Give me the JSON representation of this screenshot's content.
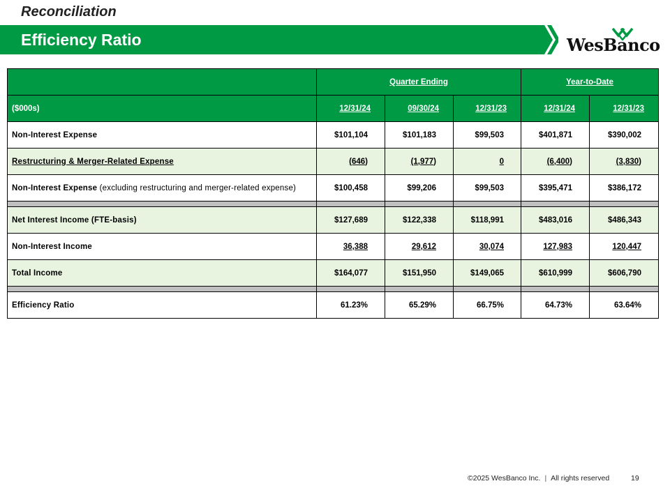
{
  "header": {
    "kicker": "Reconciliation",
    "title": "Efficiency Ratio",
    "logo_text": "WesBanco",
    "accent_color": "#009a44"
  },
  "table": {
    "unit_label": "($000s)",
    "group_quarter": "Quarter Ending",
    "group_ytd": "Year-to-Date",
    "columns": [
      "12/31/24",
      "09/30/24",
      "12/31/23",
      "12/31/24",
      "12/31/23"
    ],
    "rows": {
      "nie": {
        "label": "Non-Interest Expense",
        "values": [
          "$101,104",
          "$101,183",
          "$99,503",
          "$401,871",
          "$390,002"
        ]
      },
      "restr": {
        "label": "Restructuring & Merger-Related Expense",
        "values": [
          "(646)",
          "(1,977)",
          "0",
          "(6,400)",
          "(3,830)"
        ]
      },
      "nie_ex": {
        "label": "Non-Interest Expense",
        "note": "(excluding restructuring and merger-related expense)",
        "values": [
          "$100,458",
          "$99,206",
          "$99,503",
          "$395,471",
          "$386,172"
        ]
      },
      "nii": {
        "label": "Net Interest Income (FTE-basis)",
        "values": [
          "$127,689",
          "$122,338",
          "$118,991",
          "$483,016",
          "$486,343"
        ]
      },
      "noni": {
        "label": "Non-Interest Income",
        "values": [
          "36,388",
          "29,612",
          "30,074",
          "127,983",
          "120,447"
        ]
      },
      "total": {
        "label": "Total Income",
        "values": [
          "$164,077",
          "$151,950",
          "$149,065",
          "$610,999",
          "$606,790"
        ]
      },
      "eff": {
        "label": "Efficiency Ratio",
        "values": [
          "61.23%",
          "65.29%",
          "66.75%",
          "64.73%",
          "63.64%"
        ]
      }
    }
  },
  "footer": {
    "copyright": "©2025 WesBanco Inc.",
    "divider": "|",
    "rights": "All rights reserved",
    "page_number": "19"
  }
}
